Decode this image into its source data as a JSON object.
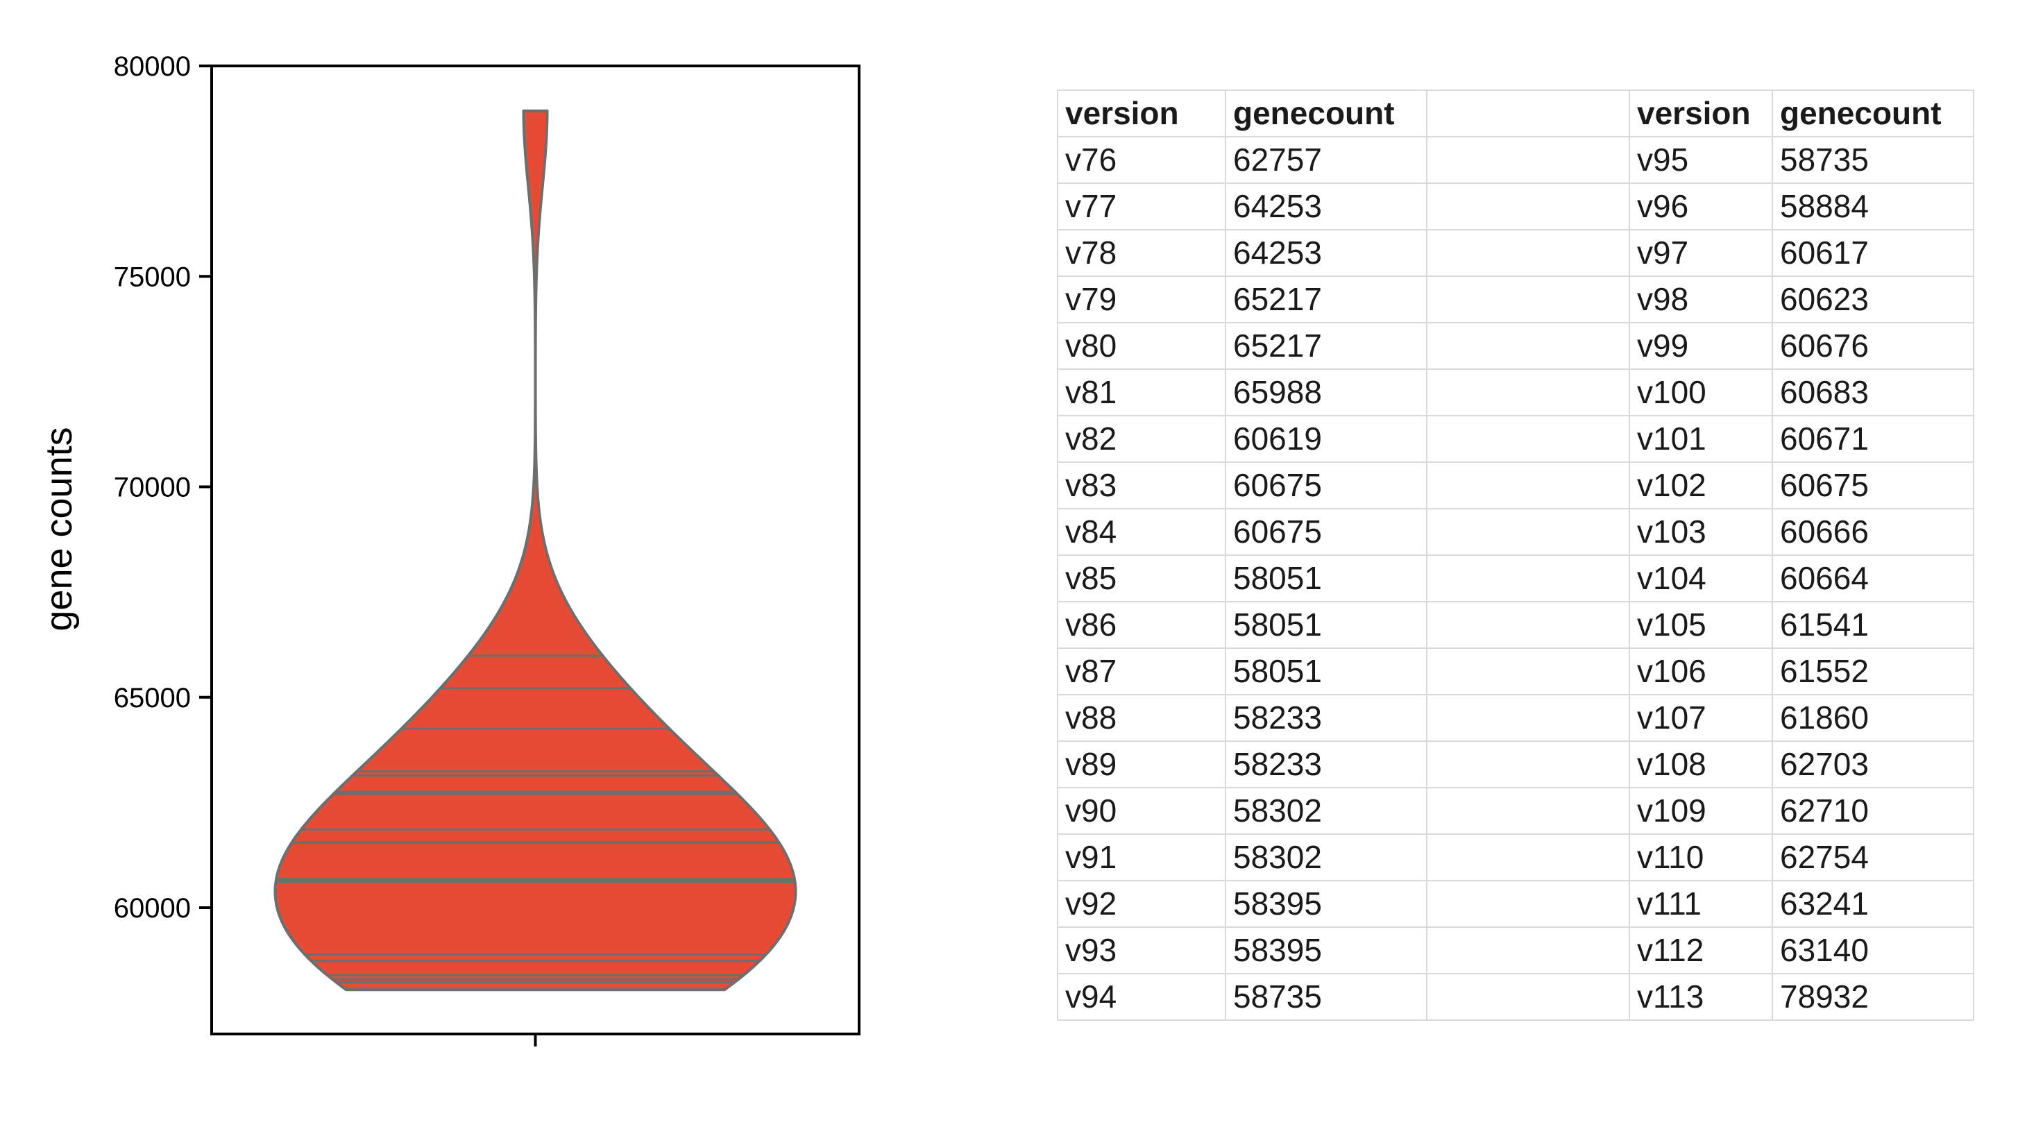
{
  "chart_data": [
    {
      "type": "violin",
      "title": "",
      "xlabel": "",
      "ylabel": "gene counts",
      "ylim": [
        57000,
        80000
      ],
      "yticks": [
        60000,
        65000,
        70000,
        75000,
        80000
      ],
      "xticks": [
        ""
      ],
      "fill_color": "#e64b35",
      "line_color": "#6e6e6e",
      "inner": "stick",
      "grid": false,
      "values": [
        62757,
        64253,
        64253,
        65217,
        65217,
        65988,
        60619,
        60675,
        60675,
        58051,
        58051,
        58051,
        58233,
        58233,
        58302,
        58302,
        58395,
        58395,
        58735,
        58735,
        58884,
        60617,
        60623,
        60676,
        60683,
        60671,
        60675,
        60666,
        60664,
        61541,
        61552,
        61860,
        62703,
        62710,
        62754,
        63241,
        63140,
        78932
      ]
    },
    {
      "type": "table",
      "columns": [
        "version",
        "genecount",
        "",
        "version",
        "genecount"
      ],
      "rows": [
        [
          "v76",
          "62757",
          "",
          "v95",
          "58735"
        ],
        [
          "v77",
          "64253",
          "",
          "v96",
          "58884"
        ],
        [
          "v78",
          "64253",
          "",
          "v97",
          "60617"
        ],
        [
          "v79",
          "65217",
          "",
          "v98",
          "60623"
        ],
        [
          "v80",
          "65217",
          "",
          "v99",
          "60676"
        ],
        [
          "v81",
          "65988",
          "",
          "v100",
          "60683"
        ],
        [
          "v82",
          "60619",
          "",
          "v101",
          "60671"
        ],
        [
          "v83",
          "60675",
          "",
          "v102",
          "60675"
        ],
        [
          "v84",
          "60675",
          "",
          "v103",
          "60666"
        ],
        [
          "v85",
          "58051",
          "",
          "v104",
          "60664"
        ],
        [
          "v86",
          "58051",
          "",
          "v105",
          "61541"
        ],
        [
          "v87",
          "58051",
          "",
          "v106",
          "61552"
        ],
        [
          "v88",
          "58233",
          "",
          "v107",
          "61860"
        ],
        [
          "v89",
          "58233",
          "",
          "v108",
          "62703"
        ],
        [
          "v90",
          "58302",
          "",
          "v109",
          "62710"
        ],
        [
          "v91",
          "58302",
          "",
          "v110",
          "62754"
        ],
        [
          "v92",
          "58395",
          "",
          "v111",
          "63241"
        ],
        [
          "v93",
          "58395",
          "",
          "v112",
          "63140"
        ],
        [
          "v94",
          "58735",
          "",
          "v113",
          "78932"
        ]
      ]
    }
  ]
}
